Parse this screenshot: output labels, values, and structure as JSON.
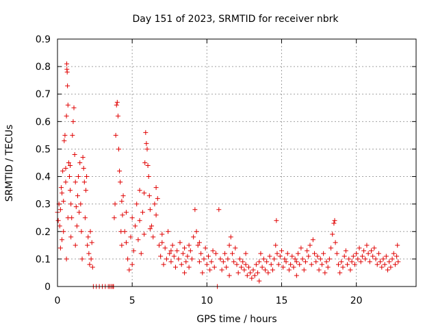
{
  "chart_data": {
    "type": "scatter",
    "title": "Day 151 of 2023, SRMTID for receiver nbrk",
    "xlabel": "GPS time / hours",
    "ylabel": "SRMTID / TECUs",
    "xlim": [
      0,
      24
    ],
    "ylim": [
      0,
      0.9
    ],
    "xticks": [
      0,
      5,
      10,
      15,
      20
    ],
    "yticks": [
      0,
      0.1,
      0.2,
      0.3,
      0.4,
      0.5,
      0.6,
      0.7,
      0.8,
      0.9
    ],
    "xtick_labels": [
      "0",
      "5",
      "10",
      "15",
      "20"
    ],
    "ytick_labels": [
      "0",
      "0.1",
      "0.2",
      "0.3",
      "0.4",
      "0.5",
      "0.6",
      "0.7",
      "0.8",
      "0.9"
    ],
    "grid": true,
    "marker": "+",
    "color": "#e00000",
    "series": [
      {
        "name": "nbrk",
        "points": [
          [
            0.0,
            0.27
          ],
          [
            0.05,
            0.24
          ],
          [
            0.1,
            0.3
          ],
          [
            0.15,
            0.22
          ],
          [
            0.2,
            0.28
          ],
          [
            0.25,
            0.36
          ],
          [
            0.3,
            0.17
          ],
          [
            0.35,
            0.42
          ],
          [
            0.4,
            0.31
          ],
          [
            0.45,
            0.53
          ],
          [
            0.5,
            0.55
          ],
          [
            0.55,
            0.43
          ],
          [
            0.6,
            0.62
          ],
          [
            0.6,
            0.1
          ],
          [
            0.62,
            0.81
          ],
          [
            0.63,
            0.79
          ],
          [
            0.65,
            0.78
          ],
          [
            0.67,
            0.73
          ],
          [
            0.7,
            0.66
          ],
          [
            0.75,
            0.45
          ],
          [
            0.8,
            0.4
          ],
          [
            0.85,
            0.35
          ],
          [
            0.9,
            0.3
          ],
          [
            0.95,
            0.25
          ],
          [
            1.0,
            0.55
          ],
          [
            1.05,
            0.6
          ],
          [
            1.1,
            0.65
          ],
          [
            1.15,
            0.48
          ],
          [
            1.2,
            0.38
          ],
          [
            1.25,
            0.29
          ],
          [
            1.3,
            0.22
          ],
          [
            1.35,
            0.33
          ],
          [
            1.4,
            0.4
          ],
          [
            1.5,
            0.45
          ],
          [
            1.55,
            0.3
          ],
          [
            1.6,
            0.2
          ],
          [
            1.7,
            0.47
          ],
          [
            1.75,
            0.43
          ],
          [
            1.8,
            0.38
          ],
          [
            1.85,
            0.25
          ],
          [
            1.9,
            0.35
          ],
          [
            1.95,
            0.4
          ],
          [
            2.0,
            0.15
          ],
          [
            2.05,
            0.18
          ],
          [
            2.1,
            0.12
          ],
          [
            2.15,
            0.08
          ],
          [
            2.2,
            0.2
          ],
          [
            2.25,
            0.1
          ],
          [
            2.3,
            0.16
          ],
          [
            2.35,
            0.07
          ],
          [
            0.2,
            0.14
          ],
          [
            0.4,
            0.2
          ],
          [
            0.7,
            0.25
          ],
          [
            0.9,
            0.18
          ],
          [
            1.2,
            0.15
          ],
          [
            1.45,
            0.27
          ],
          [
            1.65,
            0.1
          ],
          [
            0.3,
            0.34
          ],
          [
            0.55,
            0.38
          ],
          [
            0.85,
            0.44
          ],
          [
            2.4,
            0.0
          ],
          [
            2.6,
            0.0
          ],
          [
            2.8,
            0.0
          ],
          [
            3.0,
            0.0
          ],
          [
            3.2,
            0.0
          ],
          [
            3.4,
            0.0
          ],
          [
            3.5,
            0.0
          ],
          [
            3.6,
            0.0
          ],
          [
            3.7,
            0.0
          ],
          [
            3.75,
            0.0
          ],
          [
            3.8,
            0.25
          ],
          [
            3.85,
            0.3
          ],
          [
            3.9,
            0.55
          ],
          [
            3.95,
            0.66
          ],
          [
            4.0,
            0.67
          ],
          [
            4.05,
            0.62
          ],
          [
            4.1,
            0.5
          ],
          [
            4.15,
            0.42
          ],
          [
            4.2,
            0.38
          ],
          [
            4.25,
            0.2
          ],
          [
            4.3,
            0.15
          ],
          [
            4.35,
            0.26
          ],
          [
            4.4,
            0.33
          ],
          [
            4.5,
            0.2
          ],
          [
            4.6,
            0.16
          ],
          [
            4.7,
            0.1
          ],
          [
            4.8,
            0.06
          ],
          [
            4.9,
            0.18
          ],
          [
            5.0,
            0.25
          ],
          [
            5.1,
            0.13
          ],
          [
            5.2,
            0.22
          ],
          [
            5.3,
            0.3
          ],
          [
            5.4,
            0.17
          ],
          [
            5.5,
            0.24
          ],
          [
            5.6,
            0.12
          ],
          [
            5.7,
            0.27
          ],
          [
            5.8,
            0.34
          ],
          [
            5.85,
            0.45
          ],
          [
            5.9,
            0.56
          ],
          [
            5.95,
            0.52
          ],
          [
            6.0,
            0.5
          ],
          [
            6.05,
            0.44
          ],
          [
            6.1,
            0.4
          ],
          [
            6.15,
            0.33
          ],
          [
            6.2,
            0.28
          ],
          [
            6.3,
            0.22
          ],
          [
            6.4,
            0.18
          ],
          [
            6.5,
            0.3
          ],
          [
            6.6,
            0.36
          ],
          [
            6.7,
            0.32
          ],
          [
            6.8,
            0.15
          ],
          [
            6.9,
            0.11
          ],
          [
            7.0,
            0.16
          ],
          [
            7.1,
            0.08
          ],
          [
            7.2,
            0.14
          ],
          [
            7.3,
            0.1
          ],
          [
            7.4,
            0.2
          ],
          [
            7.5,
            0.12
          ],
          [
            7.6,
            0.09
          ],
          [
            7.7,
            0.15
          ],
          [
            7.8,
            0.11
          ],
          [
            7.9,
            0.07
          ],
          [
            8.0,
            0.13
          ],
          [
            8.1,
            0.1
          ],
          [
            8.2,
            0.16
          ],
          [
            8.3,
            0.08
          ],
          [
            8.4,
            0.12
          ],
          [
            8.5,
            0.14
          ],
          [
            8.6,
            0.09
          ],
          [
            8.7,
            0.11
          ],
          [
            8.8,
            0.07
          ],
          [
            8.9,
            0.13
          ],
          [
            9.0,
            0.1
          ],
          [
            9.1,
            0.18
          ],
          [
            9.2,
            0.28
          ],
          [
            9.3,
            0.2
          ],
          [
            9.4,
            0.15
          ],
          [
            9.5,
            0.09
          ],
          [
            9.6,
            0.12
          ],
          [
            9.7,
            0.05
          ],
          [
            9.8,
            0.1
          ],
          [
            9.9,
            0.14
          ],
          [
            10.0,
            0.08
          ],
          [
            10.1,
            0.11
          ],
          [
            10.2,
            0.06
          ],
          [
            10.3,
            0.09
          ],
          [
            10.4,
            0.13
          ],
          [
            10.5,
            0.07
          ],
          [
            10.6,
            0.12
          ],
          [
            10.7,
            0.0
          ],
          [
            10.8,
            0.28
          ],
          [
            10.9,
            0.1
          ],
          [
            11.0,
            0.06
          ],
          [
            11.1,
            0.09
          ],
          [
            11.2,
            0.12
          ],
          [
            11.3,
            0.07
          ],
          [
            11.4,
            0.1
          ],
          [
            11.5,
            0.15
          ],
          [
            11.6,
            0.18
          ],
          [
            11.7,
            0.12
          ],
          [
            11.8,
            0.09
          ],
          [
            11.9,
            0.14
          ],
          [
            12.0,
            0.08
          ],
          [
            12.1,
            0.05
          ],
          [
            12.2,
            0.1
          ],
          [
            12.3,
            0.07
          ],
          [
            12.4,
            0.09
          ],
          [
            12.5,
            0.06
          ],
          [
            12.6,
            0.08
          ],
          [
            12.7,
            0.04
          ],
          [
            12.8,
            0.07
          ],
          [
            12.9,
            0.05
          ],
          [
            13.0,
            0.03
          ],
          [
            13.1,
            0.06
          ],
          [
            13.2,
            0.04
          ],
          [
            13.3,
            0.08
          ],
          [
            13.4,
            0.05
          ],
          [
            13.5,
            0.09
          ],
          [
            13.6,
            0.12
          ],
          [
            13.7,
            0.07
          ],
          [
            13.8,
            0.1
          ],
          [
            13.9,
            0.06
          ],
          [
            14.0,
            0.09
          ],
          [
            14.1,
            0.05
          ],
          [
            14.2,
            0.11
          ],
          [
            14.3,
            0.08
          ],
          [
            14.4,
            0.06
          ],
          [
            14.5,
            0.1
          ],
          [
            14.6,
            0.15
          ],
          [
            14.65,
            0.24
          ],
          [
            14.7,
            0.12
          ],
          [
            14.8,
            0.08
          ],
          [
            14.9,
            0.11
          ],
          [
            15.0,
            0.13
          ],
          [
            15.1,
            0.07
          ],
          [
            15.2,
            0.1
          ],
          [
            15.3,
            0.09
          ],
          [
            15.4,
            0.12
          ],
          [
            15.5,
            0.06
          ],
          [
            15.6,
            0.08
          ],
          [
            15.7,
            0.11
          ],
          [
            15.8,
            0.07
          ],
          [
            15.9,
            0.1
          ],
          [
            16.0,
            0.09
          ],
          [
            16.1,
            0.12
          ],
          [
            16.2,
            0.08
          ],
          [
            16.3,
            0.14
          ],
          [
            16.4,
            0.1
          ],
          [
            16.5,
            0.06
          ],
          [
            16.6,
            0.09
          ],
          [
            16.7,
            0.13
          ],
          [
            16.8,
            0.11
          ],
          [
            16.9,
            0.15
          ],
          [
            17.0,
            0.08
          ],
          [
            17.1,
            0.17
          ],
          [
            17.2,
            0.12
          ],
          [
            17.3,
            0.09
          ],
          [
            17.4,
            0.11
          ],
          [
            17.5,
            0.06
          ],
          [
            17.6,
            0.1
          ],
          [
            17.7,
            0.08
          ],
          [
            17.8,
            0.12
          ],
          [
            17.9,
            0.05
          ],
          [
            18.0,
            0.09
          ],
          [
            18.1,
            0.07
          ],
          [
            18.2,
            0.1
          ],
          [
            18.3,
            0.14
          ],
          [
            18.4,
            0.19
          ],
          [
            18.5,
            0.23
          ],
          [
            18.55,
            0.24
          ],
          [
            18.6,
            0.16
          ],
          [
            18.7,
            0.12
          ],
          [
            18.8,
            0.08
          ],
          [
            18.9,
            0.05
          ],
          [
            19.0,
            0.09
          ],
          [
            19.1,
            0.07
          ],
          [
            19.2,
            0.11
          ],
          [
            19.3,
            0.13
          ],
          [
            19.4,
            0.08
          ],
          [
            19.5,
            0.1
          ],
          [
            19.6,
            0.06
          ],
          [
            19.7,
            0.09
          ],
          [
            19.8,
            0.11
          ],
          [
            19.9,
            0.08
          ],
          [
            20.0,
            0.12
          ],
          [
            20.1,
            0.1
          ],
          [
            20.2,
            0.14
          ],
          [
            20.3,
            0.09
          ],
          [
            20.4,
            0.11
          ],
          [
            20.5,
            0.13
          ],
          [
            20.6,
            0.1
          ],
          [
            20.7,
            0.15
          ],
          [
            20.8,
            0.12
          ],
          [
            20.9,
            0.09
          ],
          [
            21.0,
            0.13
          ],
          [
            21.1,
            0.11
          ],
          [
            21.2,
            0.14
          ],
          [
            21.3,
            0.1
          ],
          [
            21.4,
            0.08
          ],
          [
            21.5,
            0.12
          ],
          [
            21.6,
            0.09
          ],
          [
            21.7,
            0.07
          ],
          [
            21.8,
            0.1
          ],
          [
            21.9,
            0.08
          ],
          [
            22.0,
            0.11
          ],
          [
            22.1,
            0.06
          ],
          [
            22.2,
            0.09
          ],
          [
            22.3,
            0.07
          ],
          [
            22.4,
            0.1
          ],
          [
            22.5,
            0.12
          ],
          [
            22.6,
            0.08
          ],
          [
            22.7,
            0.11
          ],
          [
            22.75,
            0.15
          ],
          [
            22.8,
            0.09
          ],
          [
            7.0,
            0.19
          ],
          [
            8.5,
            0.05
          ],
          [
            9.5,
            0.16
          ],
          [
            11.5,
            0.04
          ],
          [
            13.5,
            0.02
          ],
          [
            16.0,
            0.04
          ],
          [
            5.0,
            0.08
          ],
          [
            4.6,
            0.27
          ],
          [
            5.5,
            0.35
          ],
          [
            6.2,
            0.21
          ],
          [
            4.3,
            0.31
          ],
          [
            5.8,
            0.19
          ],
          [
            6.6,
            0.26
          ],
          [
            7.6,
            0.13
          ],
          [
            8.8,
            0.15
          ],
          [
            12.6,
            0.12
          ]
        ]
      }
    ]
  }
}
